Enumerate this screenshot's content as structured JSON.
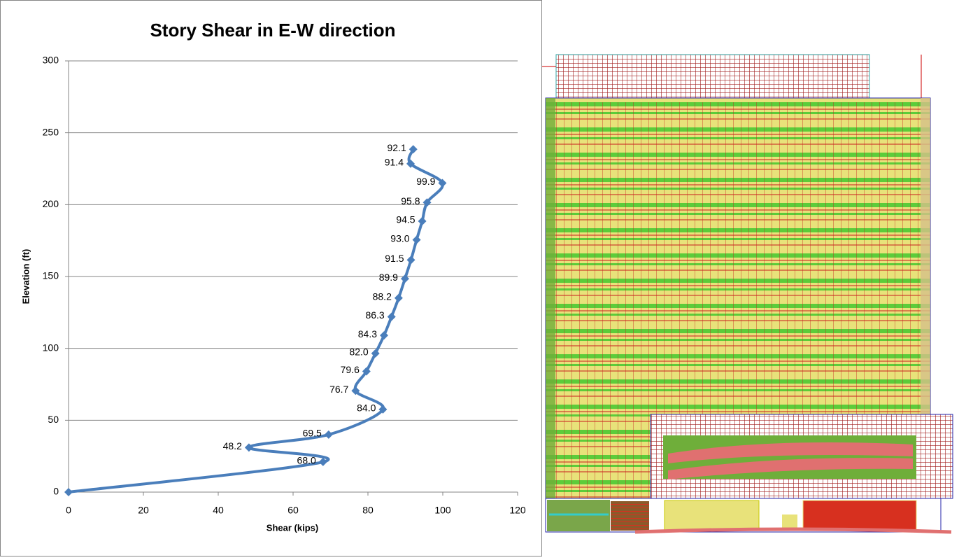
{
  "chart_data": {
    "type": "scatter",
    "title": "Story Shear in E-W direction",
    "x_label": "Shear (kips)",
    "y_label": "Elevation (ft)",
    "xlim": [
      0,
      120
    ],
    "xticks": [
      0,
      20,
      40,
      60,
      80,
      100,
      120
    ],
    "ylim": [
      0,
      300
    ],
    "yticks": [
      0,
      50,
      100,
      150,
      200,
      250,
      300
    ],
    "grid": true,
    "series": [
      {
        "color": "#4a7ebb",
        "x": [
          0,
          68.0,
          48.2,
          69.5,
          84.0,
          76.7,
          79.6,
          82.0,
          84.3,
          86.3,
          88.2,
          89.9,
          91.5,
          93.0,
          94.5,
          95.8,
          99.9,
          91.4,
          92.1
        ],
        "values": [
          0,
          21,
          31,
          40,
          57.5,
          70.5,
          84,
          96.5,
          109,
          122,
          135,
          148.5,
          161.5,
          175.5,
          188.5,
          201.5,
          215,
          228.5,
          238.5
        ],
        "value_labels": [
          null,
          "68.0",
          "48.2",
          "69.5",
          "84.0",
          "76.7",
          "79.6",
          "82.0",
          "84.3",
          "86.3",
          "88.2",
          "89.9",
          "91.5",
          "93.0",
          "94.5",
          "95.8",
          "99.9",
          "91.4",
          "92.1"
        ]
      }
    ]
  }
}
